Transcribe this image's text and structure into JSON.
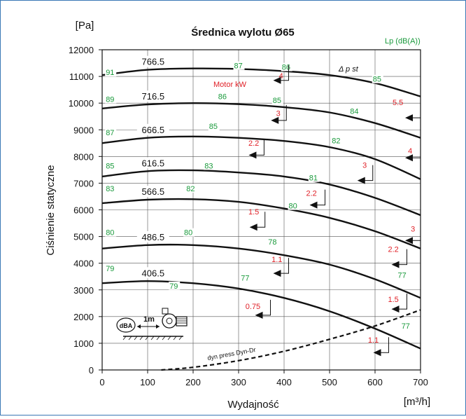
{
  "chart_data": {
    "type": "line",
    "title": "Średnica wylotu Ø65",
    "xlabel": "Wydajność",
    "ylabel": "Ciśnienie statyczne",
    "x_unit": "[m³/h]",
    "y_unit": "[Pa]",
    "xlim": [
      0,
      700
    ],
    "ylim": [
      0,
      12000
    ],
    "x_ticks": [
      "0",
      "100",
      "200",
      "300",
      "400",
      "500",
      "600",
      "700"
    ],
    "y_ticks": [
      "0",
      "1000",
      "2000",
      "3000",
      "4000",
      "5000",
      "6000",
      "7000",
      "8000",
      "9000",
      "10000",
      "11000",
      "12000"
    ],
    "grid": true,
    "labels": {
      "lp": "Lp (dB(A))",
      "motor": "Motor  kW",
      "delta": "Δ p st",
      "dyn": "dyn press   Dyn-Dr",
      "dba": "dBA",
      "distance": "1m"
    },
    "series": [
      {
        "name": "766.5",
        "x": [
          0,
          100,
          200,
          300,
          400,
          500,
          600,
          700
        ],
        "y": [
          11050,
          11250,
          11300,
          11280,
          11200,
          11050,
          10750,
          10250
        ]
      },
      {
        "name": "716.5",
        "x": [
          0,
          100,
          200,
          300,
          400,
          500,
          600,
          700
        ],
        "y": [
          9800,
          9950,
          10000,
          9960,
          9850,
          9650,
          9250,
          8700
        ]
      },
      {
        "name": "666.5",
        "x": [
          0,
          100,
          200,
          300,
          400,
          500,
          600,
          700
        ],
        "y": [
          8500,
          8700,
          8750,
          8700,
          8580,
          8350,
          7900,
          7150
        ]
      },
      {
        "name": "616.5",
        "x": [
          0,
          100,
          200,
          300,
          400,
          500,
          600,
          700
        ],
        "y": [
          7250,
          7450,
          7480,
          7400,
          7250,
          6950,
          6450,
          5800
        ]
      },
      {
        "name": "566.5",
        "x": [
          0,
          100,
          200,
          300,
          400,
          500,
          600,
          700
        ],
        "y": [
          6250,
          6380,
          6400,
          6300,
          6050,
          5700,
          5200,
          4550
        ]
      },
      {
        "name": "486.5",
        "x": [
          0,
          100,
          200,
          300,
          400,
          500,
          600,
          700
        ],
        "y": [
          4550,
          4680,
          4680,
          4550,
          4300,
          3950,
          3400,
          2700
        ]
      },
      {
        "name": "406.5",
        "x": [
          0,
          100,
          200,
          300,
          400,
          500,
          600,
          700
        ],
        "y": [
          3250,
          3330,
          3250,
          3050,
          2700,
          2200,
          1550,
          800
        ]
      },
      {
        "name": "dyn press",
        "dashed": true,
        "x": [
          130,
          200,
          300,
          400,
          500,
          600,
          700
        ],
        "y": [
          0,
          100,
          350,
          700,
          1150,
          1650,
          2250
        ]
      }
    ],
    "noise_labels": [
      {
        "text": "91",
        "x": 8,
        "y": 11050
      },
      {
        "text": "87",
        "x": 290,
        "y": 11300
      },
      {
        "text": "86",
        "x": 395,
        "y": 11250
      },
      {
        "text": "85",
        "x": 595,
        "y": 10800
      },
      {
        "text": "89",
        "x": 8,
        "y": 10050
      },
      {
        "text": "86",
        "x": 255,
        "y": 10150
      },
      {
        "text": "85",
        "x": 375,
        "y": 10000
      },
      {
        "text": "84",
        "x": 545,
        "y": 9600
      },
      {
        "text": "87",
        "x": 8,
        "y": 8800
      },
      {
        "text": "85",
        "x": 235,
        "y": 9030
      },
      {
        "text": "82",
        "x": 505,
        "y": 8500
      },
      {
        "text": "85",
        "x": 8,
        "y": 7550
      },
      {
        "text": "83",
        "x": 225,
        "y": 7550
      },
      {
        "text": "81",
        "x": 455,
        "y": 7100
      },
      {
        "text": "83",
        "x": 8,
        "y": 6700
      },
      {
        "text": "82",
        "x": 185,
        "y": 6700
      },
      {
        "text": "80",
        "x": 410,
        "y": 6050
      },
      {
        "text": "80",
        "x": 8,
        "y": 5050
      },
      {
        "text": "80",
        "x": 180,
        "y": 5050
      },
      {
        "text": "78",
        "x": 365,
        "y": 4700
      },
      {
        "text": "79",
        "x": 8,
        "y": 3700
      },
      {
        "text": "79",
        "x": 148,
        "y": 3050
      },
      {
        "text": "77",
        "x": 305,
        "y": 3350
      },
      {
        "text": "77",
        "x": 650,
        "y": 3450
      },
      {
        "text": "77",
        "x": 658,
        "y": 1550
      }
    ],
    "motor_labels": [
      {
        "text": "4",
        "x": 398,
        "y": 10920
      },
      {
        "text": "5.5",
        "x": 662,
        "y": 9930
      },
      {
        "text": "3",
        "x": 392,
        "y": 9520
      },
      {
        "text": "2.2",
        "x": 345,
        "y": 8400
      },
      {
        "text": "4",
        "x": 682,
        "y": 8120
      },
      {
        "text": "3",
        "x": 582,
        "y": 7570
      },
      {
        "text": "2.2",
        "x": 472,
        "y": 6520
      },
      {
        "text": "1.5",
        "x": 345,
        "y": 5830
      },
      {
        "text": "3",
        "x": 688,
        "y": 5180
      },
      {
        "text": "2.2",
        "x": 652,
        "y": 4420
      },
      {
        "text": "1.1",
        "x": 396,
        "y": 4040
      },
      {
        "text": "1.5",
        "x": 652,
        "y": 2550
      },
      {
        "text": "0.75",
        "x": 348,
        "y": 2280
      },
      {
        "text": "1.1",
        "x": 608,
        "y": 1020
      }
    ],
    "arrows": [
      {
        "x": 410,
        "y": 10850
      },
      {
        "x": 700,
        "y": 9450
      },
      {
        "x": 405,
        "y": 9350
      },
      {
        "x": 356,
        "y": 8050
      },
      {
        "x": 700,
        "y": 7950
      },
      {
        "x": 595,
        "y": 7100
      },
      {
        "x": 490,
        "y": 6180
      },
      {
        "x": 358,
        "y": 5350
      },
      {
        "x": 700,
        "y": 4850
      },
      {
        "x": 670,
        "y": 3950
      },
      {
        "x": 410,
        "y": 3620
      },
      {
        "x": 670,
        "y": 2280
      },
      {
        "x": 370,
        "y": 2050
      },
      {
        "x": 630,
        "y": 650
      }
    ]
  }
}
